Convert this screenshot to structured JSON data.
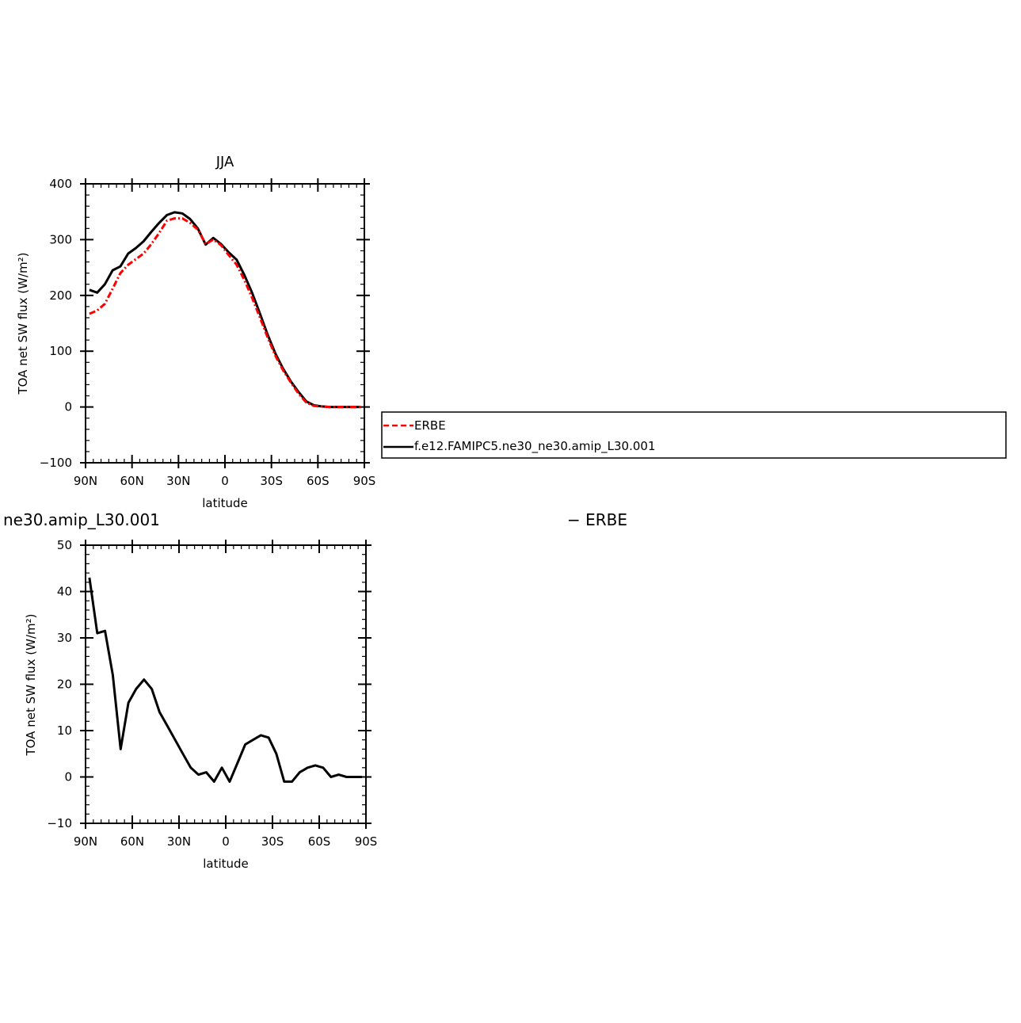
{
  "chart_data": [
    {
      "type": "line",
      "title": "JJA",
      "xlabel": "latitude",
      "ylabel": "TOA net SW flux (W/m²)",
      "x_ticks": [
        "90N",
        "60N",
        "30N",
        "0",
        "30S",
        "60S",
        "90S"
      ],
      "y_ticks": [
        "400",
        "300",
        "200",
        "100",
        "0",
        "−100"
      ],
      "xlim": [
        90,
        -90
      ],
      "ylim": [
        -100,
        400
      ],
      "series": [
        {
          "name": "ERBE",
          "color": "#ff0000",
          "style": "dashed",
          "x": [
            87.5,
            82.5,
            77.5,
            72.5,
            67.5,
            62.5,
            57.5,
            52.5,
            47.5,
            42.5,
            37.5,
            32.5,
            27.5,
            22.5,
            17.5,
            12.5,
            7.5,
            2.5,
            -2.5,
            -7.5,
            -12.5,
            -17.5,
            -22.5,
            -27.5,
            -32.5,
            -37.5,
            -42.5,
            -47.5,
            -52.5,
            -57.5,
            -62.5,
            -67.5,
            -72.5,
            -77.5,
            -82.5,
            -87.5
          ],
          "values": [
            167,
            173,
            185,
            212,
            240,
            255,
            265,
            275,
            292,
            312,
            334,
            338,
            338,
            330,
            318,
            292,
            300,
            290,
            272,
            255,
            228,
            196,
            161,
            125,
            92,
            66,
            44,
            24,
            8,
            2,
            1,
            0,
            0,
            0,
            0,
            0
          ]
        },
        {
          "name": "f.e12.FAMIPC5.ne30_ne30.amip_L30.001",
          "color": "#000000",
          "style": "solid",
          "x": [
            87.5,
            82.5,
            77.5,
            72.5,
            67.5,
            62.5,
            57.5,
            52.5,
            47.5,
            42.5,
            37.5,
            32.5,
            27.5,
            22.5,
            17.5,
            12.5,
            7.5,
            2.5,
            -2.5,
            -7.5,
            -12.5,
            -17.5,
            -22.5,
            -27.5,
            -32.5,
            -37.5,
            -42.5,
            -47.5,
            -52.5,
            -57.5,
            -62.5,
            -67.5,
            -72.5,
            -77.5,
            -82.5,
            -87.5
          ],
          "values": [
            210,
            205,
            220,
            245,
            252,
            275,
            285,
            297,
            314,
            330,
            344,
            349,
            347,
            337,
            320,
            291,
            303,
            292,
            277,
            264,
            237,
            205,
            168,
            130,
            96,
            69,
            46,
            27,
            10,
            3,
            1,
            0,
            0,
            0,
            0,
            0
          ]
        }
      ]
    },
    {
      "type": "line",
      "title": "",
      "xlabel": "latitude",
      "ylabel": "TOA net SW flux (W/m²)",
      "x_ticks": [
        "90N",
        "60N",
        "30N",
        "0",
        "30S",
        "60S",
        "90S"
      ],
      "y_ticks": [
        "50",
        "40",
        "30",
        "20",
        "10",
        "0",
        "−10"
      ],
      "xlim": [
        90,
        -90
      ],
      "ylim": [
        -10,
        50
      ],
      "series": [
        {
          "color": "#000000",
          "style": "solid",
          "x": [
            87.5,
            82.5,
            77.5,
            72.5,
            67.5,
            62.5,
            57.5,
            52.5,
            47.5,
            42.5,
            37.5,
            32.5,
            27.5,
            22.5,
            17.5,
            12.5,
            7.5,
            2.5,
            -2.5,
            -7.5,
            -12.5,
            -17.5,
            -22.5,
            -27.5,
            -32.5,
            -37.5,
            -42.5,
            -47.5,
            -52.5,
            -57.5,
            -62.5,
            -67.5,
            -72.5,
            -77.5,
            -82.5,
            -87.5
          ],
          "values": [
            43,
            31,
            31.5,
            22,
            6,
            16,
            19,
            21,
            19,
            14,
            11,
            8,
            5,
            2,
            0.5,
            1,
            -1,
            2,
            -1,
            3,
            7,
            8,
            9,
            8.5,
            5,
            -1,
            -1,
            1,
            2,
            2.5,
            2,
            0,
            0.5,
            0,
            0,
            0
          ]
        }
      ]
    }
  ],
  "legend": {
    "items": [
      {
        "label": "ERBE",
        "color": "#ff0000",
        "style": "dashed"
      },
      {
        "label": "f.e12.FAMIPC5.ne30_ne30.amip_L30.001",
        "color": "#000000",
        "style": "solid"
      }
    ]
  },
  "bottom_panel": {
    "left_title": "ne30.amip_L30.001",
    "right_title": "− ERBE"
  }
}
